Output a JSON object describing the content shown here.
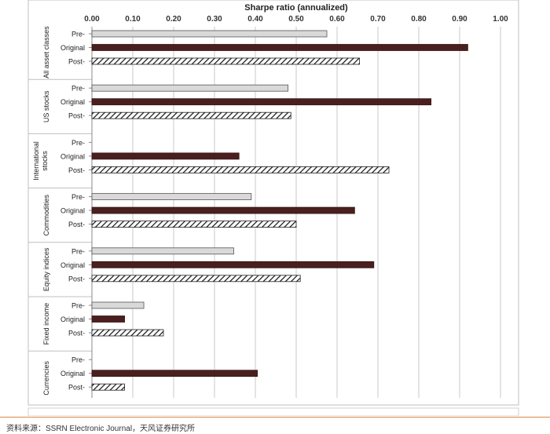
{
  "chart_data": {
    "type": "bar",
    "orientation": "horizontal",
    "title": "Sharpe ratio (annualized)",
    "xlim": [
      0,
      1.0
    ],
    "x_ticks": [
      "0.00",
      "0.10",
      "0.20",
      "0.30",
      "0.40",
      "0.50",
      "0.60",
      "0.70",
      "0.80",
      "0.90",
      "1.00"
    ],
    "grid": true,
    "groups": [
      {
        "name": "All asset classes",
        "bars": [
          {
            "label": "Pre-",
            "value": 0.575
          },
          {
            "label": "Original",
            "value": 0.92
          },
          {
            "label": "Post-",
            "value": 0.655
          }
        ]
      },
      {
        "name": "US stocks",
        "bars": [
          {
            "label": "Pre-",
            "value": 0.48
          },
          {
            "label": "Original",
            "value": 0.83
          },
          {
            "label": "Post-",
            "value": 0.487
          }
        ]
      },
      {
        "name": "International stocks",
        "bars": [
          {
            "label": "Pre-",
            "value": null
          },
          {
            "label": "Original",
            "value": 0.36
          },
          {
            "label": "Post-",
            "value": 0.727
          }
        ]
      },
      {
        "name": "Commodities",
        "bars": [
          {
            "label": "Pre-",
            "value": 0.39
          },
          {
            "label": "Original",
            "value": 0.643
          },
          {
            "label": "Post-",
            "value": 0.5
          }
        ]
      },
      {
        "name": "Equity indices",
        "bars": [
          {
            "label": "Pre-",
            "value": 0.347
          },
          {
            "label": "Original",
            "value": 0.69
          },
          {
            "label": "Post-",
            "value": 0.51
          }
        ]
      },
      {
        "name": "Fixed income",
        "bars": [
          {
            "label": "Pre-",
            "value": 0.127
          },
          {
            "label": "Original",
            "value": 0.08
          },
          {
            "label": "Post-",
            "value": 0.175
          }
        ]
      },
      {
        "name": "Currencies",
        "bars": [
          {
            "label": "Pre-",
            "value": null
          },
          {
            "label": "Original",
            "value": 0.405
          },
          {
            "label": "Post-",
            "value": 0.08
          }
        ]
      }
    ],
    "bar_styles": {
      "Pre-": {
        "fill": "#d9d9d9",
        "stroke": "#555555"
      },
      "Original": {
        "fill": "#4a1f1f",
        "stroke": "#3a1616"
      },
      "Post-": {
        "fill": "hatch",
        "stroke": "#222222"
      }
    }
  },
  "source": "资料来源：SSRN Electronic Journal，天风证券研究所"
}
